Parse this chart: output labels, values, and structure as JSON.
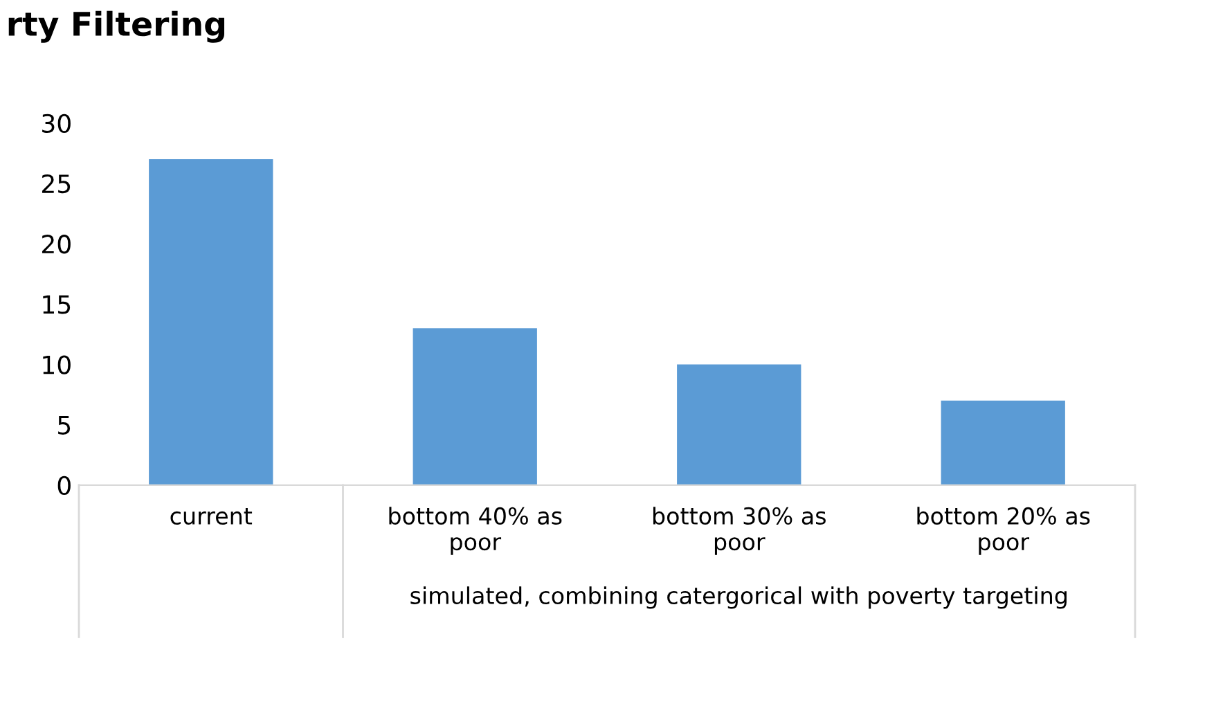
{
  "chart_data": {
    "type": "bar",
    "title": "rty Filtering",
    "categories": [
      "current",
      "bottom 40% as\npoor",
      "bottom 30% as\npoor",
      "bottom 20% as\npoor"
    ],
    "values": [
      27,
      13,
      10,
      7
    ],
    "color": "#5b9bd5",
    "ylim": [
      0,
      30
    ],
    "yticks": [
      0,
      5,
      10,
      15,
      20,
      25,
      30
    ],
    "grid": false,
    "annotations": [
      "simulated, combining catergorical with poverty targeting"
    ]
  }
}
